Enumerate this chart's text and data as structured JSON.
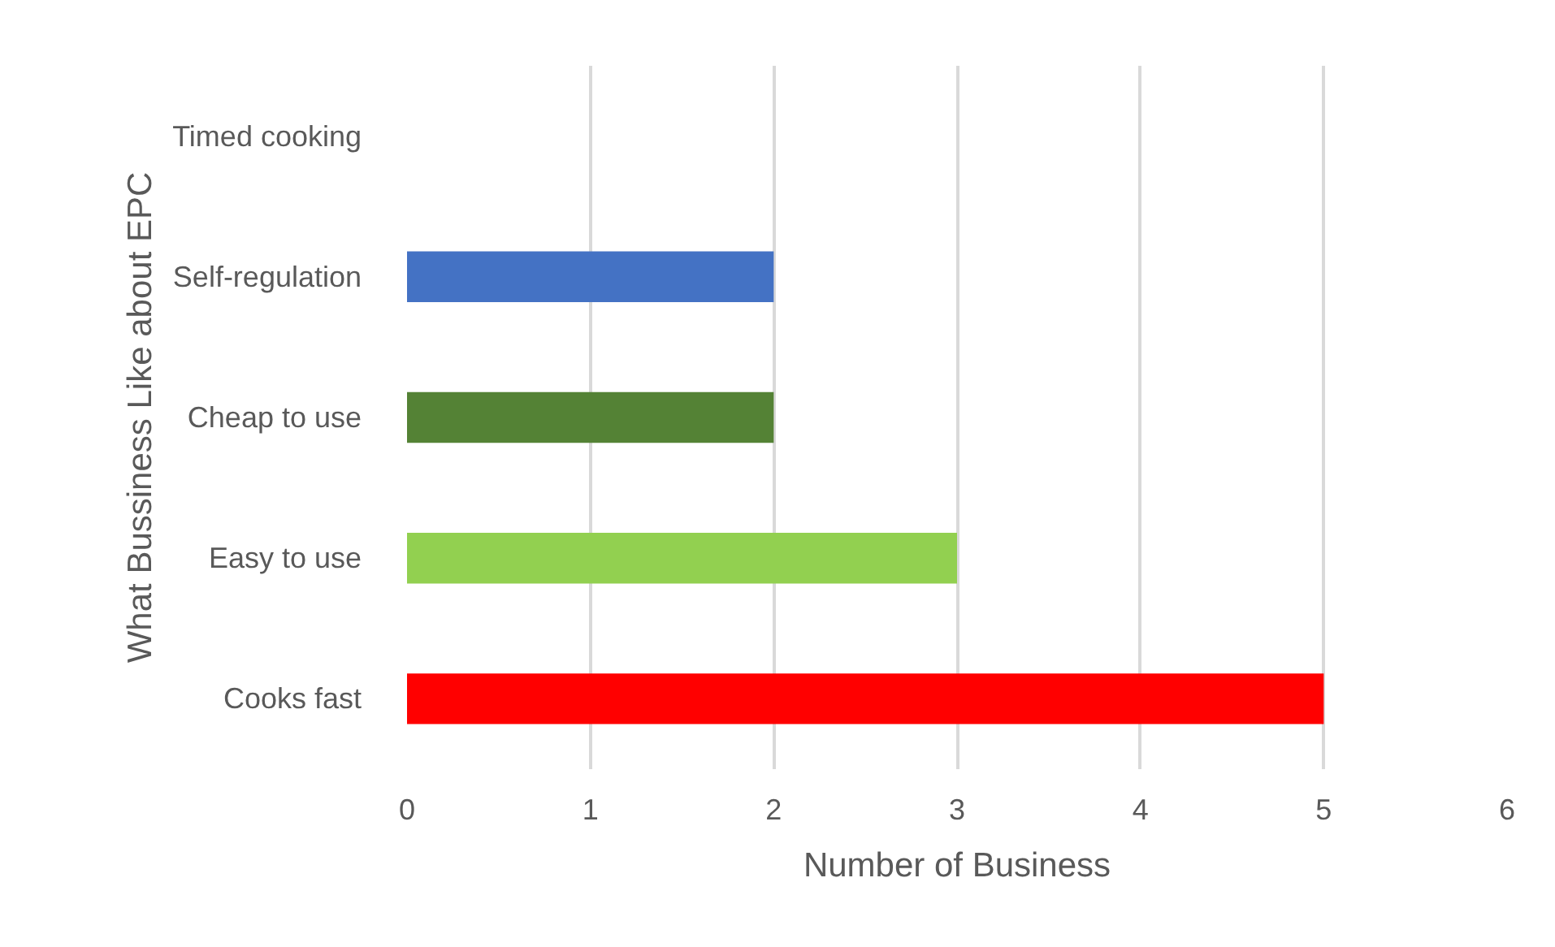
{
  "chart_data": {
    "type": "bar",
    "orientation": "horizontal",
    "xlabel": "Number of Business",
    "ylabel": "What Bussiness Like about EPC",
    "categories": [
      "Timed cooking",
      "Self-regulation",
      "Cheap to use",
      "Easy to use",
      "Cooks fast"
    ],
    "values": [
      0,
      2,
      2,
      3,
      5
    ],
    "colors": [
      "#ffc000",
      "#4472c4",
      "#548235",
      "#92d050",
      "#ff0000"
    ],
    "xlim": [
      0,
      6
    ],
    "xticks": [
      0,
      1,
      2,
      3,
      4,
      5,
      6
    ],
    "grid": "x"
  }
}
